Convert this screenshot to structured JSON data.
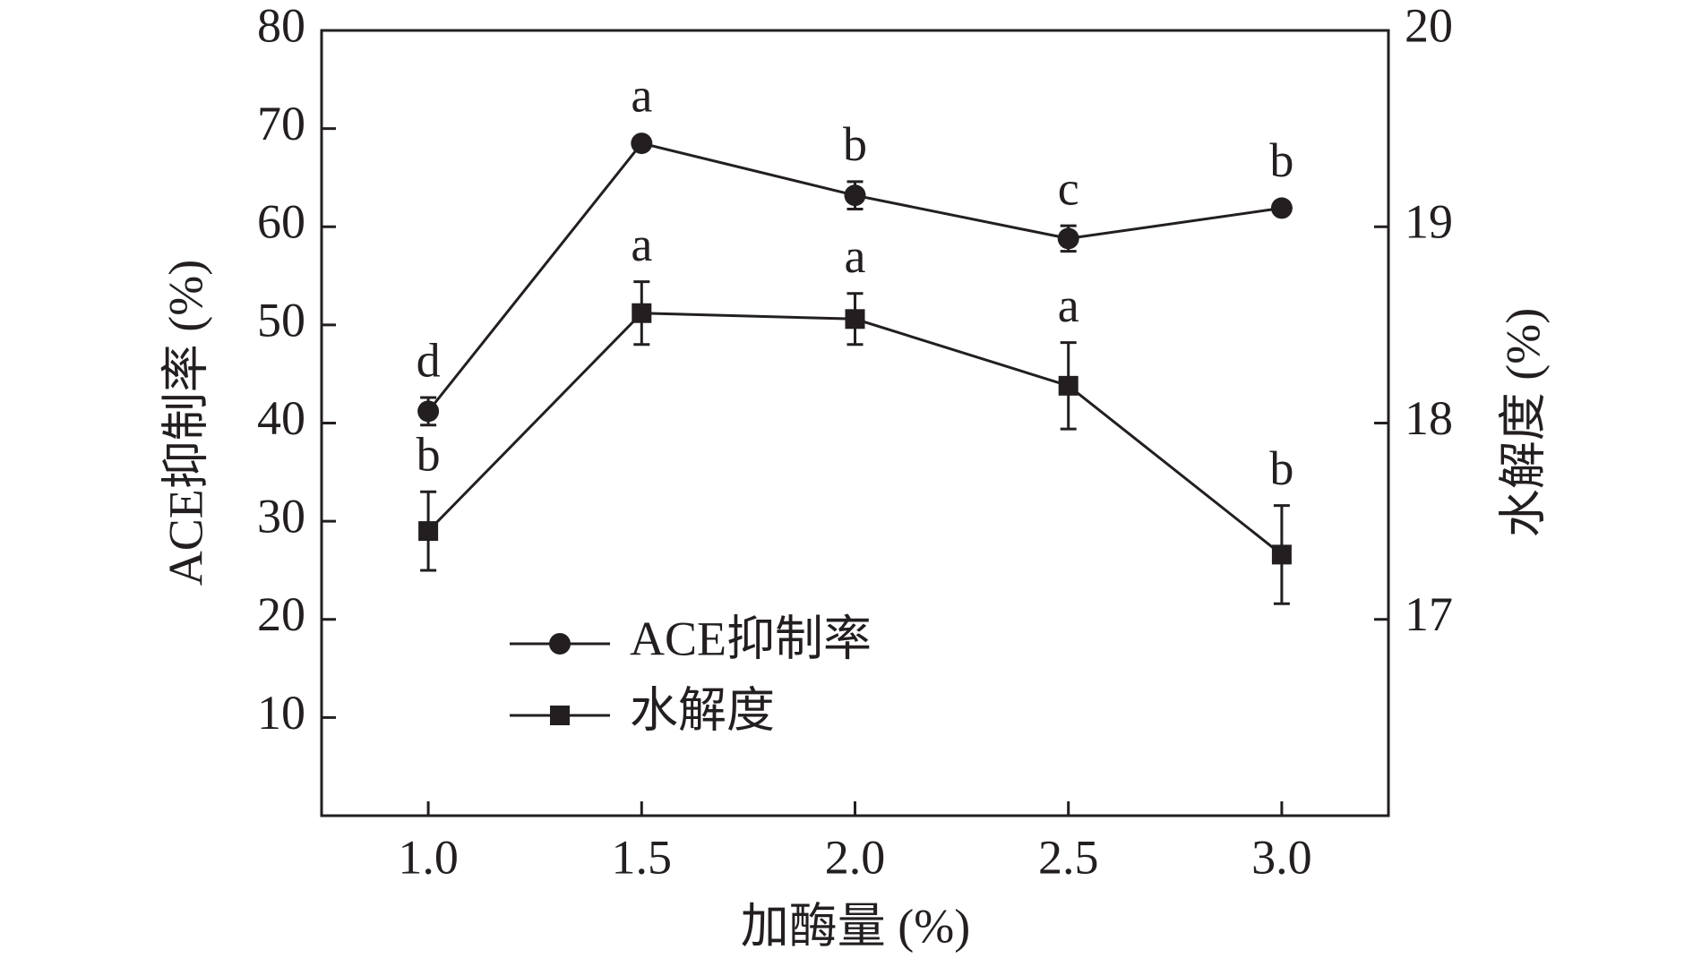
{
  "chart_data": {
    "type": "line",
    "x_label": "加酶量 (%)",
    "y_label": "ACE抑制率 (%)",
    "y2_label": "水解度 (%)",
    "x": [
      1.0,
      1.5,
      2.0,
      2.5,
      3.0
    ],
    "xlim": [
      0.75,
      3.25
    ],
    "xticks": [
      {
        "value": 1,
        "label": "1.0"
      },
      {
        "value": 1.5,
        "label": "1.5"
      },
      {
        "value": 2,
        "label": "2.0"
      },
      {
        "value": 2.5,
        "label": "2.5"
      },
      {
        "value": 3,
        "label": "3.0"
      }
    ],
    "ylim": [
      0,
      80
    ],
    "yticks": [
      10,
      20,
      30,
      40,
      50,
      60,
      70,
      80
    ],
    "y2lim": [
      16,
      20
    ],
    "y2ticks": [
      17,
      18,
      19,
      20
    ],
    "legend": "lower-left",
    "series": [
      {
        "name": "ACE抑制率",
        "color": "#231f20",
        "marker": "circle",
        "axis": "y",
        "values": [
          41.2,
          68.5,
          63.2,
          58.8,
          61.9
        ],
        "errors": [
          1.4,
          0.3,
          1.4,
          1.3,
          0.3
        ],
        "labels": [
          "d",
          "a",
          "b",
          "c",
          "b"
        ]
      },
      {
        "name": "水解度",
        "color": "#231f20",
        "marker": "square",
        "axis": "y2",
        "values": [
          17.45,
          18.56,
          18.53,
          18.19,
          17.33
        ],
        "errors": [
          0.2,
          0.16,
          0.13,
          0.22,
          0.25
        ],
        "labels": [
          "b",
          "a",
          "a",
          "a",
          "b"
        ]
      }
    ]
  }
}
